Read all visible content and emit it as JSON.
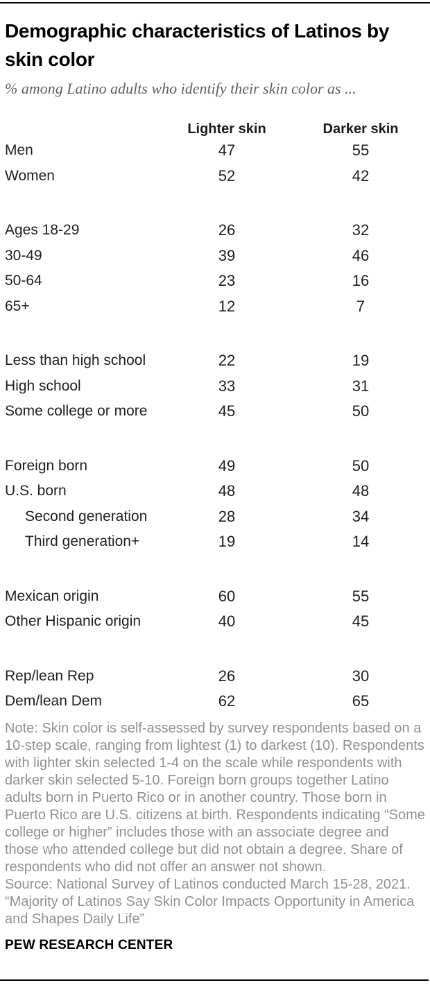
{
  "colors": {
    "title_text": "#000000",
    "body_text": "#1f1f1f",
    "subtitle_text": "#5f5f63",
    "note_text": "#919191",
    "divider": "#000000"
  },
  "chart_data": {
    "type": "table",
    "title": "Demographic characteristics of Latinos by skin color",
    "subtitle": "% among Latino adults who identify their skin color as ...",
    "columns": [
      "Lighter skin",
      "Darker skin"
    ],
    "groups": [
      {
        "name": "gender",
        "rows": [
          {
            "label": "Men",
            "values": [
              47,
              55
            ],
            "indent": false
          },
          {
            "label": "Women",
            "values": [
              52,
              42
            ],
            "indent": false
          }
        ]
      },
      {
        "name": "age",
        "rows": [
          {
            "label": "Ages 18-29",
            "values": [
              26,
              32
            ],
            "indent": false
          },
          {
            "label": "30-49",
            "values": [
              39,
              46
            ],
            "indent": false
          },
          {
            "label": "50-64",
            "values": [
              23,
              16
            ],
            "indent": false
          },
          {
            "label": "65+",
            "values": [
              12,
              7
            ],
            "indent": false
          }
        ]
      },
      {
        "name": "education",
        "rows": [
          {
            "label": "Less than high school",
            "values": [
              22,
              19
            ],
            "indent": false
          },
          {
            "label": "High school",
            "values": [
              33,
              31
            ],
            "indent": false
          },
          {
            "label": "Some college or more",
            "values": [
              45,
              50
            ],
            "indent": false
          }
        ]
      },
      {
        "name": "nativity",
        "rows": [
          {
            "label": "Foreign born",
            "values": [
              49,
              50
            ],
            "indent": false
          },
          {
            "label": "U.S. born",
            "values": [
              48,
              48
            ],
            "indent": false
          },
          {
            "label": "Second generation",
            "values": [
              28,
              34
            ],
            "indent": true
          },
          {
            "label": "Third generation+",
            "values": [
              19,
              14
            ],
            "indent": true
          }
        ]
      },
      {
        "name": "origin",
        "rows": [
          {
            "label": "Mexican origin",
            "values": [
              60,
              55
            ],
            "indent": false
          },
          {
            "label": "Other Hispanic origin",
            "values": [
              40,
              45
            ],
            "indent": false
          }
        ]
      },
      {
        "name": "party",
        "rows": [
          {
            "label": "Rep/lean Rep",
            "values": [
              26,
              30
            ],
            "indent": false
          },
          {
            "label": "Dem/lean Dem",
            "values": [
              62,
              65
            ],
            "indent": false
          }
        ]
      }
    ],
    "note": "Note: Skin color is self-assessed by survey respondents based on a 10-step scale, ranging from lightest (1) to darkest (10). Respondents with lighter skin selected 1-4 on the scale while respondents with darker skin selected 5-10. Foreign born groups together Latino adults born in Puerto Rico or in another country. Those born in Puerto Rico are U.S. citizens at birth. Respondents indicating “Some college or higher” includes those with an associate degree and those who attended college but did not obtain a degree. Share of respondents who did not offer an answer not shown.",
    "source": "Source: National Survey of Latinos conducted March 15-28, 2021. “Majority of Latinos Say Skin Color Impacts Opportunity in America and Shapes Daily Life”",
    "footer": "PEW RESEARCH CENTER"
  }
}
